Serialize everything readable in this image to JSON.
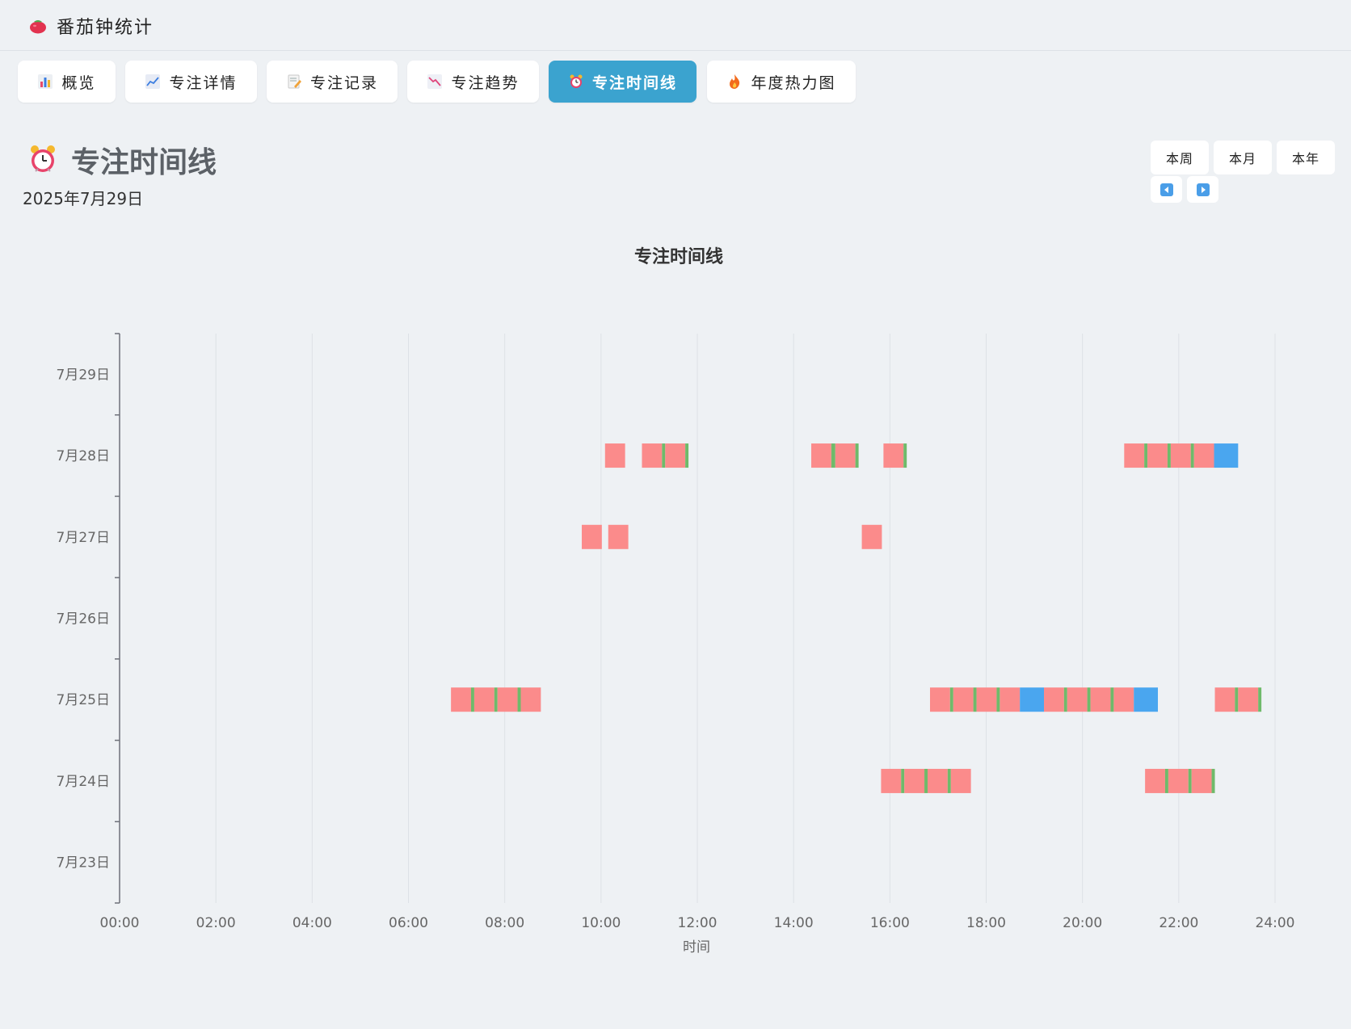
{
  "app": {
    "title": "番茄钟统计"
  },
  "tabs": [
    {
      "label": "概览",
      "icon": "bar-chart-icon",
      "active": false
    },
    {
      "label": "专注详情",
      "icon": "line-chart-icon",
      "active": false
    },
    {
      "label": "专注记录",
      "icon": "memo-icon",
      "active": false
    },
    {
      "label": "专注趋势",
      "icon": "trend-down-icon",
      "active": false
    },
    {
      "label": "专注时间线",
      "icon": "alarm-clock-icon",
      "active": true
    },
    {
      "label": "年度热力图",
      "icon": "fire-icon",
      "active": false
    }
  ],
  "page": {
    "title": "专注时间线",
    "date": "2025年7月29日"
  },
  "range_buttons": [
    "本周",
    "本月",
    "本年"
  ],
  "nav": {
    "prev": "previous-icon",
    "next": "next-icon"
  },
  "colors": {
    "focus": "#fb8b8b",
    "short_break": "#6fba6a",
    "long_break": "#4aa6ef",
    "accent": "#3ba3cf"
  },
  "chart_data": {
    "type": "timeline",
    "title": "专注时间线",
    "xlabel": "时间",
    "xlim": [
      "00:00",
      "24:00"
    ],
    "x_ticks": [
      "00:00",
      "02:00",
      "04:00",
      "06:00",
      "08:00",
      "10:00",
      "12:00",
      "14:00",
      "16:00",
      "18:00",
      "20:00",
      "22:00",
      "24:00"
    ],
    "categories": [
      "7月29日",
      "7月28日",
      "7月27日",
      "7月26日",
      "7月25日",
      "7月24日",
      "7月23日"
    ],
    "grid": true,
    "rows": [
      {
        "day": "7月29日",
        "segments": []
      },
      {
        "day": "7月28日",
        "segments": [
          {
            "start": "10:05",
            "end": "10:30",
            "kind": "focus"
          },
          {
            "start": "10:51",
            "end": "11:16",
            "kind": "focus"
          },
          {
            "start": "11:16",
            "end": "11:20",
            "kind": "short_break"
          },
          {
            "start": "11:20",
            "end": "11:45",
            "kind": "focus"
          },
          {
            "start": "11:45",
            "end": "11:49",
            "kind": "short_break"
          },
          {
            "start": "14:22",
            "end": "14:47",
            "kind": "focus"
          },
          {
            "start": "14:47",
            "end": "14:52",
            "kind": "short_break"
          },
          {
            "start": "14:52",
            "end": "15:17",
            "kind": "focus"
          },
          {
            "start": "15:17",
            "end": "15:21",
            "kind": "short_break"
          },
          {
            "start": "15:52",
            "end": "16:17",
            "kind": "focus"
          },
          {
            "start": "16:17",
            "end": "16:21",
            "kind": "short_break"
          },
          {
            "start": "20:52",
            "end": "21:17",
            "kind": "focus"
          },
          {
            "start": "21:17",
            "end": "21:21",
            "kind": "short_break"
          },
          {
            "start": "21:21",
            "end": "21:46",
            "kind": "focus"
          },
          {
            "start": "21:46",
            "end": "21:50",
            "kind": "short_break"
          },
          {
            "start": "21:50",
            "end": "22:15",
            "kind": "focus"
          },
          {
            "start": "22:15",
            "end": "22:19",
            "kind": "short_break"
          },
          {
            "start": "22:19",
            "end": "22:44",
            "kind": "focus"
          },
          {
            "start": "22:44",
            "end": "23:14",
            "kind": "long_break"
          }
        ]
      },
      {
        "day": "7月27日",
        "segments": [
          {
            "start": "09:36",
            "end": "10:01",
            "kind": "focus"
          },
          {
            "start": "10:09",
            "end": "10:34",
            "kind": "focus"
          },
          {
            "start": "15:25",
            "end": "15:50",
            "kind": "focus"
          }
        ]
      },
      {
        "day": "7月26日",
        "segments": []
      },
      {
        "day": "7月25日",
        "segments": [
          {
            "start": "06:53",
            "end": "07:18",
            "kind": "focus"
          },
          {
            "start": "07:18",
            "end": "07:22",
            "kind": "short_break"
          },
          {
            "start": "07:22",
            "end": "07:47",
            "kind": "focus"
          },
          {
            "start": "07:47",
            "end": "07:51",
            "kind": "short_break"
          },
          {
            "start": "07:51",
            "end": "08:16",
            "kind": "focus"
          },
          {
            "start": "08:16",
            "end": "08:20",
            "kind": "short_break"
          },
          {
            "start": "08:20",
            "end": "08:45",
            "kind": "focus"
          },
          {
            "start": "16:50",
            "end": "17:15",
            "kind": "focus"
          },
          {
            "start": "17:15",
            "end": "17:19",
            "kind": "short_break"
          },
          {
            "start": "17:19",
            "end": "17:44",
            "kind": "focus"
          },
          {
            "start": "17:44",
            "end": "17:48",
            "kind": "short_break"
          },
          {
            "start": "17:48",
            "end": "18:13",
            "kind": "focus"
          },
          {
            "start": "18:13",
            "end": "18:17",
            "kind": "short_break"
          },
          {
            "start": "18:17",
            "end": "18:42",
            "kind": "focus"
          },
          {
            "start": "18:42",
            "end": "19:12",
            "kind": "long_break"
          },
          {
            "start": "19:12",
            "end": "19:37",
            "kind": "focus"
          },
          {
            "start": "19:37",
            "end": "19:41",
            "kind": "short_break"
          },
          {
            "start": "19:41",
            "end": "20:06",
            "kind": "focus"
          },
          {
            "start": "20:06",
            "end": "20:10",
            "kind": "short_break"
          },
          {
            "start": "20:10",
            "end": "20:35",
            "kind": "focus"
          },
          {
            "start": "20:35",
            "end": "20:39",
            "kind": "short_break"
          },
          {
            "start": "20:39",
            "end": "21:04",
            "kind": "focus"
          },
          {
            "start": "21:04",
            "end": "21:34",
            "kind": "long_break"
          },
          {
            "start": "22:45",
            "end": "23:10",
            "kind": "focus"
          },
          {
            "start": "23:10",
            "end": "23:14",
            "kind": "short_break"
          },
          {
            "start": "23:14",
            "end": "23:39",
            "kind": "focus"
          },
          {
            "start": "23:39",
            "end": "23:43",
            "kind": "short_break"
          }
        ]
      },
      {
        "day": "7月24日",
        "segments": [
          {
            "start": "15:49",
            "end": "16:14",
            "kind": "focus"
          },
          {
            "start": "16:14",
            "end": "16:18",
            "kind": "short_break"
          },
          {
            "start": "16:18",
            "end": "16:43",
            "kind": "focus"
          },
          {
            "start": "16:43",
            "end": "16:47",
            "kind": "short_break"
          },
          {
            "start": "16:47",
            "end": "17:12",
            "kind": "focus"
          },
          {
            "start": "17:12",
            "end": "17:16",
            "kind": "short_break"
          },
          {
            "start": "17:16",
            "end": "17:41",
            "kind": "focus"
          },
          {
            "start": "21:18",
            "end": "21:43",
            "kind": "focus"
          },
          {
            "start": "21:43",
            "end": "21:47",
            "kind": "short_break"
          },
          {
            "start": "21:47",
            "end": "22:12",
            "kind": "focus"
          },
          {
            "start": "22:12",
            "end": "22:16",
            "kind": "short_break"
          },
          {
            "start": "22:16",
            "end": "22:41",
            "kind": "focus"
          },
          {
            "start": "22:41",
            "end": "22:45",
            "kind": "short_break"
          }
        ]
      },
      {
        "day": "7月23日",
        "segments": []
      }
    ]
  }
}
